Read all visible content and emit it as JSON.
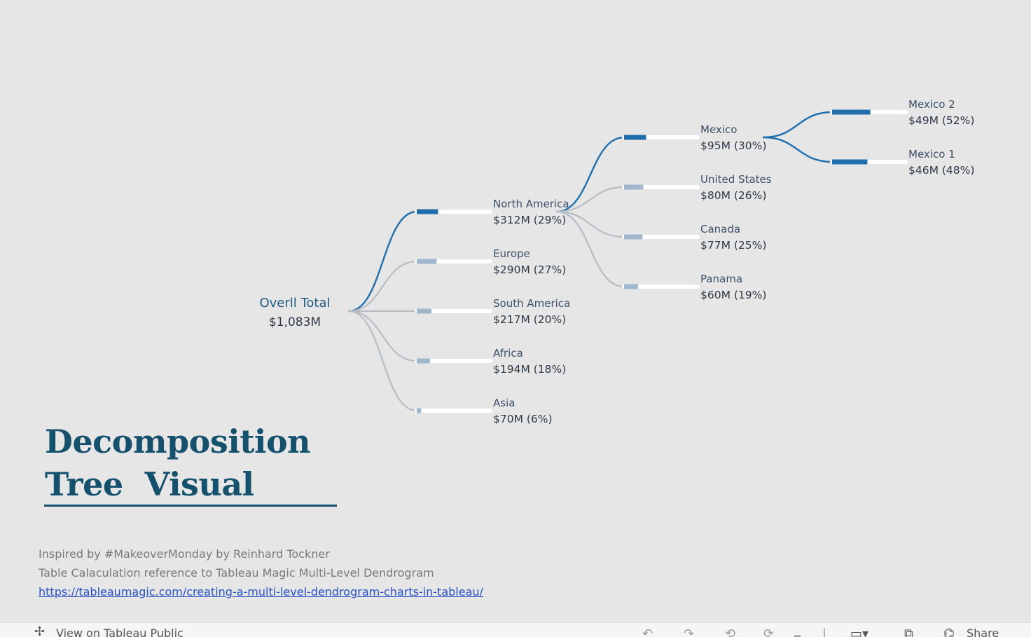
{
  "chart_data": {
    "type": "decomposition-tree",
    "root": {
      "name": "Overll Total",
      "value": "$1,083M"
    },
    "levels": [
      {
        "parent": "Overll Total",
        "nodes": [
          {
            "name": "North America",
            "value_label": "$312M (29%)",
            "value_m": 312,
            "pct": 29,
            "highlight": true
          },
          {
            "name": "Europe",
            "value_label": "$290M (27%)",
            "value_m": 290,
            "pct": 27,
            "highlight": false
          },
          {
            "name": "South America",
            "value_label": "$217M (20%)",
            "value_m": 217,
            "pct": 20,
            "highlight": false
          },
          {
            "name": "Africa",
            "value_label": "$194M (18%)",
            "value_m": 194,
            "pct": 18,
            "highlight": false
          },
          {
            "name": "Asia",
            "value_label": "$70M (6%)",
            "value_m": 70,
            "pct": 6,
            "highlight": false
          }
        ]
      },
      {
        "parent": "North America",
        "nodes": [
          {
            "name": "Mexico",
            "value_label": "$95M (30%)",
            "value_m": 95,
            "pct": 30,
            "highlight": true
          },
          {
            "name": "United States",
            "value_label": "$80M (26%)",
            "value_m": 80,
            "pct": 26,
            "highlight": false
          },
          {
            "name": "Canada",
            "value_label": "$77M (25%)",
            "value_m": 77,
            "pct": 25,
            "highlight": false
          },
          {
            "name": "Panama",
            "value_label": "$60M (19%)",
            "value_m": 60,
            "pct": 19,
            "highlight": false
          }
        ]
      },
      {
        "parent": "Mexico",
        "nodes": [
          {
            "name": "Mexico 2",
            "value_label": "$49M (52%)",
            "value_m": 49,
            "pct": 52,
            "highlight": true
          },
          {
            "name": "Mexico 1",
            "value_label": "$46M (48%)",
            "value_m": 46,
            "pct": 48,
            "highlight": true
          }
        ]
      }
    ]
  },
  "colors": {
    "highlight": "#1f6fae",
    "muted_bar": "#9fb6cf",
    "muted_link": "#b8bcc4",
    "track": "#ffffff",
    "title": "#15506c"
  },
  "title": {
    "line1": "Decomposition",
    "line2": "Tree  Visual"
  },
  "credits": {
    "line1": "Inspired by #MakeoverMonday by Reinhard Tockner",
    "line2": "Table Calaculation reference to Tableau Magic Multi-Level Dendrogram",
    "link": "https://tableaumagic.com/creating-a-multi-level-dendrogram-charts-in-tableau/"
  },
  "toolbar": {
    "view_label": "View on Tableau Public",
    "share_label": "Share",
    "icons": [
      "tableau-logo-icon",
      "undo-icon",
      "redo-icon",
      "revert-icon",
      "refresh-icon",
      "pause-icon",
      "device-layout-icon",
      "fullscreen-icon",
      "share-icon"
    ]
  }
}
